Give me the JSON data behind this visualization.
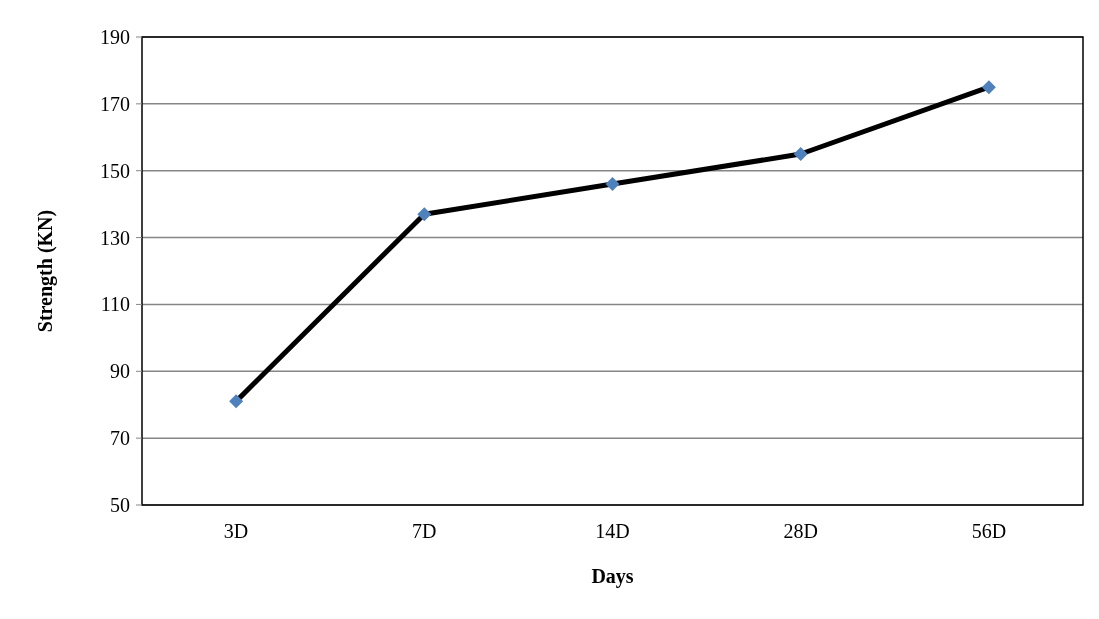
{
  "chart_data": {
    "type": "line",
    "xlabel": "Days",
    "ylabel": "Strength (KN)",
    "categories": [
      "3D",
      "7D",
      "14D",
      "28D",
      "56D"
    ],
    "series": [
      {
        "color": "#4f81bd",
        "values": [
          81,
          137,
          146,
          155,
          175
        ]
      }
    ],
    "ylim": [
      50,
      190
    ],
    "yticks": [
      50,
      70,
      90,
      110,
      130,
      150,
      170,
      190
    ],
    "grid": "y",
    "marker": "diamond",
    "line_style": "solid"
  }
}
